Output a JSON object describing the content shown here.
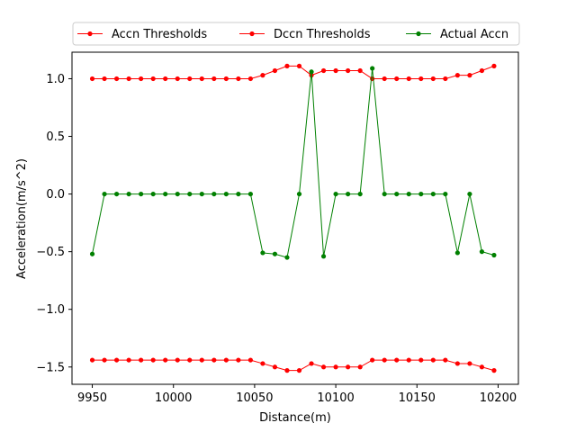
{
  "chart_data": {
    "type": "line",
    "xlabel": "Distance(m)",
    "ylabel": "Acceleration(m/s^2)",
    "xlim": [
      9937.5,
      10212.5
    ],
    "ylim": [
      -1.65,
      1.23
    ],
    "xticks": [
      9950,
      10000,
      10050,
      10100,
      10150,
      10200
    ],
    "xtick_labels": [
      "9950",
      "10000",
      "10050",
      "10100",
      "10150",
      "10200"
    ],
    "yticks": [
      1.0,
      0.5,
      0.0,
      -0.5,
      -1.0,
      -1.5
    ],
    "ytick_labels": [
      "1.0",
      "0.5",
      "0.0",
      "−0.5",
      "−1.0",
      "−1.5"
    ],
    "grid": false,
    "legend_position": "top-center",
    "x": [
      9950,
      9957.5,
      9965,
      9972.5,
      9980,
      9987.5,
      9995,
      10002.5,
      10010,
      10017.5,
      10025,
      10032.5,
      10040,
      10047.5,
      10055,
      10062.5,
      10070,
      10077.5,
      10085,
      10092.5,
      10100,
      10107.5,
      10115,
      10122.5,
      10130,
      10137.5,
      10145,
      10152.5,
      10160,
      10167.5,
      10175,
      10182.5,
      10190,
      10197.5
    ],
    "series": [
      {
        "name": "Accn Thresholds",
        "color": "#ff0000",
        "values": [
          1.0,
          1.0,
          1.0,
          1.0,
          1.0,
          1.0,
          1.0,
          1.0,
          1.0,
          1.0,
          1.0,
          1.0,
          1.0,
          1.0,
          1.03,
          1.07,
          1.11,
          1.11,
          1.03,
          1.07,
          1.07,
          1.07,
          1.07,
          1.0,
          1.0,
          1.0,
          1.0,
          1.0,
          1.0,
          1.0,
          1.03,
          1.03,
          1.07,
          1.11
        ]
      },
      {
        "name": "Dccn Thresholds",
        "color": "#ff0000",
        "values": [
          -1.44,
          -1.44,
          -1.44,
          -1.44,
          -1.44,
          -1.44,
          -1.44,
          -1.44,
          -1.44,
          -1.44,
          -1.44,
          -1.44,
          -1.44,
          -1.44,
          -1.47,
          -1.5,
          -1.53,
          -1.53,
          -1.47,
          -1.5,
          -1.5,
          -1.5,
          -1.5,
          -1.44,
          -1.44,
          -1.44,
          -1.44,
          -1.44,
          -1.44,
          -1.44,
          -1.47,
          -1.47,
          -1.5,
          -1.53
        ]
      },
      {
        "name": "Actual Accn",
        "color": "#008000",
        "values": [
          -0.52,
          0.0,
          0.0,
          0.0,
          0.0,
          0.0,
          0.0,
          0.0,
          0.0,
          0.0,
          0.0,
          0.0,
          0.0,
          0.0,
          -0.51,
          -0.52,
          -0.55,
          0.0,
          1.06,
          -0.54,
          0.0,
          0.0,
          0.0,
          1.09,
          0.0,
          0.0,
          0.0,
          0.0,
          0.0,
          0.0,
          -0.51,
          0.0,
          -0.5,
          -0.53
        ]
      }
    ]
  }
}
